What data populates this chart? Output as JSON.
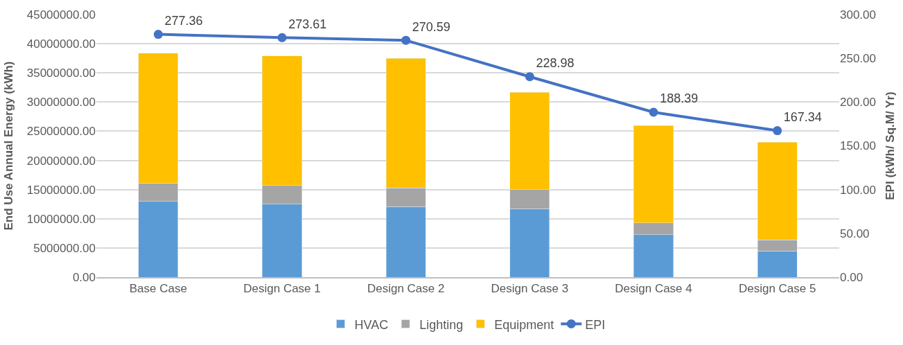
{
  "chart_data": {
    "type": "bar",
    "stacked": true,
    "categories": [
      "Base Case",
      "Design Case 1",
      "Design Case 2",
      "Design Case 3",
      "Design Case 4",
      "Design Case 5"
    ],
    "ylabel": "End Use Annual Energy (kWh)",
    "y2label": "EPI (kWh/ Sq.M/ Yr)",
    "ylim": [
      0,
      45000000
    ],
    "yticks": [
      {
        "value": 0,
        "label": "0.00"
      },
      {
        "value": 5000000,
        "label": "5000000.00"
      },
      {
        "value": 10000000,
        "label": "10000000.00"
      },
      {
        "value": 15000000,
        "label": "15000000.00"
      },
      {
        "value": 20000000,
        "label": "20000000.00"
      },
      {
        "value": 25000000,
        "label": "25000000.00"
      },
      {
        "value": 30000000,
        "label": "30000000.00"
      },
      {
        "value": 35000000,
        "label": "35000000.00"
      },
      {
        "value": 40000000,
        "label": "40000000.00"
      },
      {
        "value": 45000000,
        "label": "45000000.00"
      }
    ],
    "y2lim": [
      0,
      300
    ],
    "y2ticks": [
      {
        "value": 0,
        "label": "0.00"
      },
      {
        "value": 50,
        "label": "50.00"
      },
      {
        "value": 100,
        "label": "100.00"
      },
      {
        "value": 150,
        "label": "150.00"
      },
      {
        "value": 200,
        "label": "200.00"
      },
      {
        "value": 250,
        "label": "250.00"
      },
      {
        "value": 300,
        "label": "300.00"
      }
    ],
    "grid": "y",
    "legend": "bottom",
    "series": [
      {
        "name": "HVAC",
        "color": "#5b9bd5",
        "values": [
          13000000,
          12500000,
          12100000,
          11700000,
          7300000,
          4500000
        ]
      },
      {
        "name": "Lighting",
        "color": "#a5a5a5",
        "values": [
          3100000,
          3200000,
          3200000,
          3300000,
          2000000,
          1900000
        ]
      },
      {
        "name": "Equipment",
        "color": "#ffc000",
        "values": [
          22300000,
          22200000,
          22200000,
          16700000,
          16700000,
          16700000
        ]
      },
      {
        "name": "EPI",
        "type": "line",
        "axis": "y2",
        "color": "#4472c4",
        "marker": "circle",
        "values": [
          277.36,
          273.61,
          270.59,
          228.98,
          188.39,
          167.34
        ],
        "value_labels": [
          "277.36",
          "273.61",
          "270.59",
          "228.98",
          "188.39",
          "167.34"
        ]
      }
    ]
  }
}
